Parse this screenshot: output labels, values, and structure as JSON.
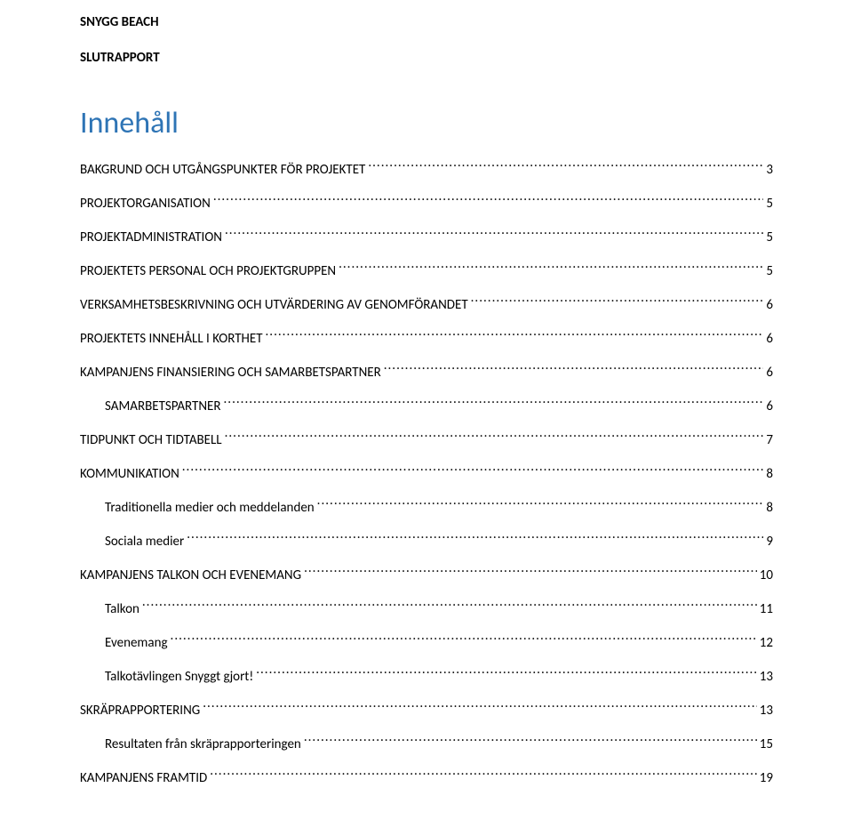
{
  "header": {
    "title": "SNYGG BEACH",
    "subtitle": "SLUTRAPPORT"
  },
  "toc": {
    "heading": "Innehåll",
    "heading_color": "#2e74b5",
    "text_color": "#000000",
    "entries": [
      {
        "label": "BAKGRUND OCH UTGÅNGSPUNKTER FÖR PROJEKTET",
        "page": "3",
        "level": 0
      },
      {
        "label": "PROJEKTORGANISATION",
        "page": "5",
        "level": 0
      },
      {
        "label": "PROJEKTADMINISTRATION",
        "page": "5",
        "level": 0
      },
      {
        "label": "PROJEKTETS PERSONAL OCH PROJEKTGRUPPEN",
        "page": "5",
        "level": 0
      },
      {
        "label": "VERKSAMHETSBESKRIVNING OCH UTVÄRDERING AV GENOMFÖRANDET",
        "page": "6",
        "level": 0
      },
      {
        "label": "PROJEKTETS INNEHÅLL I KORTHET",
        "page": "6",
        "level": 0
      },
      {
        "label": "KAMPANJENS FINANSIERING OCH SAMARBETSPARTNER",
        "page": "6",
        "level": 0
      },
      {
        "label": "SAMARBETSPARTNER",
        "page": "6",
        "level": 1
      },
      {
        "label": "TIDPUNKT OCH TIDTABELL",
        "page": "7",
        "level": 0
      },
      {
        "label": "KOMMUNIKATION",
        "page": "8",
        "level": 0
      },
      {
        "label": "Traditionella medier och meddelanden",
        "page": "8",
        "level": 1
      },
      {
        "label": "Sociala medier",
        "page": "9",
        "level": 1
      },
      {
        "label": "KAMPANJENS TALKON OCH EVENEMANG",
        "page": "10",
        "level": 0
      },
      {
        "label": "Talkon",
        "page": "11",
        "level": 1
      },
      {
        "label": "Evenemang",
        "page": "12",
        "level": 1
      },
      {
        "label": "Talkotävlingen Snyggt gjort!",
        "page": "13",
        "level": 1
      },
      {
        "label": "SKRÄPRAPPORTERING",
        "page": "13",
        "level": 0
      },
      {
        "label": "Resultaten från skräprapporteringen",
        "page": "15",
        "level": 1
      },
      {
        "label": "KAMPANJENS FRAMTID",
        "page": "19",
        "level": 0
      }
    ]
  },
  "style": {
    "page_background": "#ffffff",
    "font_family": "Calibri",
    "title_fontsize": 15,
    "heading_fontsize": 34,
    "entry_fontsize": 15
  }
}
